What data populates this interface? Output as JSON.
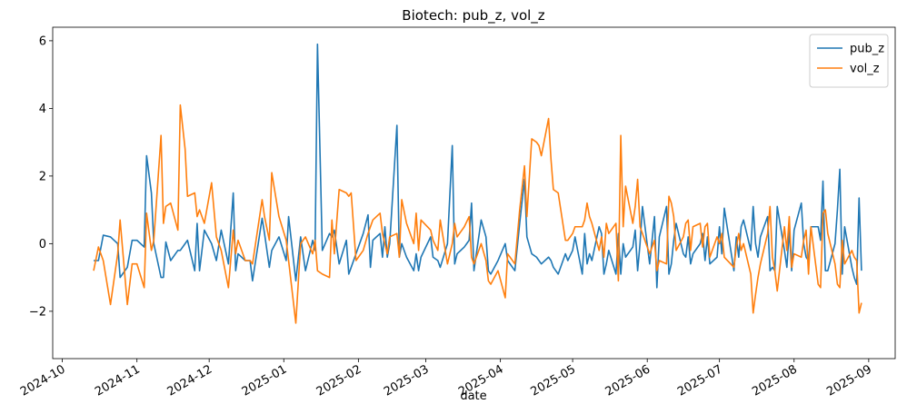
{
  "chart_data": {
    "type": "line",
    "title": "Biotech: pub_z, vol_z",
    "x_label": "date",
    "x": [
      "2024-10-14",
      "2024-10-16",
      "2024-10-18",
      "2024-10-21",
      "2024-10-24",
      "2024-10-25",
      "2024-10-28",
      "2024-10-30",
      "2024-11-01",
      "2024-11-04",
      "2024-11-05",
      "2024-11-07",
      "2024-11-08",
      "2024-11-11",
      "2024-11-12",
      "2024-11-13",
      "2024-11-15",
      "2024-11-18",
      "2024-11-19",
      "2024-11-21",
      "2024-11-22",
      "2024-11-25",
      "2024-11-26",
      "2024-11-27",
      "2024-11-29",
      "2024-12-02",
      "2024-12-04",
      "2024-12-06",
      "2024-12-09",
      "2024-12-11",
      "2024-12-12",
      "2024-12-13",
      "2024-12-16",
      "2024-12-18",
      "2024-12-19",
      "2024-12-23",
      "2024-12-24",
      "2024-12-26",
      "2024-12-27",
      "2024-12-30",
      "2025-01-02",
      "2025-01-03",
      "2025-01-06",
      "2025-01-08",
      "2025-01-10",
      "2025-01-13",
      "2025-01-14",
      "2025-01-15",
      "2025-01-17",
      "2025-01-20",
      "2025-01-21",
      "2025-01-22",
      "2025-01-24",
      "2025-01-27",
      "2025-01-28",
      "2025-01-29",
      "2025-01-31",
      "2025-02-03",
      "2025-02-05",
      "2025-02-06",
      "2025-02-07",
      "2025-02-10",
      "2025-02-11",
      "2025-02-12",
      "2025-02-13",
      "2025-02-14",
      "2025-02-17",
      "2025-02-18",
      "2025-02-19",
      "2025-02-21",
      "2025-02-24",
      "2025-02-25",
      "2025-02-26",
      "2025-02-27",
      "2025-03-03",
      "2025-03-04",
      "2025-03-06",
      "2025-03-07",
      "2025-03-10",
      "2025-03-12",
      "2025-03-13",
      "2025-03-14",
      "2025-03-17",
      "2025-03-19",
      "2025-03-20",
      "2025-03-21",
      "2025-03-24",
      "2025-03-26",
      "2025-03-27",
      "2025-03-28",
      "2025-03-31",
      "2025-04-03",
      "2025-04-04",
      "2025-04-07",
      "2025-04-09",
      "2025-04-11",
      "2025-04-12",
      "2025-04-14",
      "2025-04-16",
      "2025-04-17",
      "2025-04-18",
      "2025-04-21",
      "2025-04-22",
      "2025-04-23",
      "2025-04-25",
      "2025-04-28",
      "2025-04-29",
      "2025-05-01",
      "2025-05-02",
      "2025-05-05",
      "2025-05-06",
      "2025-05-07",
      "2025-05-08",
      "2025-05-09",
      "2025-05-12",
      "2025-05-13",
      "2025-05-14",
      "2025-05-15",
      "2025-05-16",
      "2025-05-19",
      "2025-05-20",
      "2025-05-21",
      "2025-05-22",
      "2025-05-23",
      "2025-05-26",
      "2025-05-27",
      "2025-05-28",
      "2025-05-29",
      "2025-05-30",
      "2025-06-02",
      "2025-06-04",
      "2025-06-05",
      "2025-06-06",
      "2025-06-09",
      "2025-06-10",
      "2025-06-11",
      "2025-06-12",
      "2025-06-13",
      "2025-06-16",
      "2025-06-17",
      "2025-06-18",
      "2025-06-19",
      "2025-06-20",
      "2025-06-23",
      "2025-06-24",
      "2025-06-25",
      "2025-06-26",
      "2025-06-27",
      "2025-06-30",
      "2025-07-01",
      "2025-07-02",
      "2025-07-03",
      "2025-07-07",
      "2025-07-08",
      "2025-07-09",
      "2025-07-10",
      "2025-07-11",
      "2025-07-14",
      "2025-07-15",
      "2025-07-16",
      "2025-07-17",
      "2025-07-18",
      "2025-07-21",
      "2025-07-22",
      "2025-07-23",
      "2025-07-24",
      "2025-07-25",
      "2025-07-28",
      "2025-07-29",
      "2025-07-30",
      "2025-07-31",
      "2025-08-01",
      "2025-08-04",
      "2025-08-05",
      "2025-08-06",
      "2025-08-07",
      "2025-08-08",
      "2025-08-11",
      "2025-08-12",
      "2025-08-13",
      "2025-08-14",
      "2025-08-15",
      "2025-08-18",
      "2025-08-19",
      "2025-08-20",
      "2025-08-21",
      "2025-08-22",
      "2025-08-25",
      "2025-08-26",
      "2025-08-27",
      "2025-08-28",
      "2025-08-29"
    ],
    "series": [
      {
        "name": "pub_z",
        "color": "#1f77b4",
        "values": [
          -0.5,
          -0.5,
          0.25,
          0.2,
          0.0,
          -1.0,
          -0.7,
          0.1,
          0.1,
          -0.1,
          2.6,
          1.5,
          0.0,
          -1.0,
          -1.0,
          0.05,
          -0.5,
          -0.2,
          -0.2,
          0.0,
          0.1,
          -0.8,
          0.6,
          -0.8,
          0.4,
          0.0,
          -0.5,
          0.4,
          -0.6,
          1.5,
          -0.8,
          -0.3,
          -0.5,
          -0.5,
          -1.1,
          0.75,
          0.3,
          -0.7,
          -0.2,
          0.2,
          -0.5,
          0.8,
          -1.1,
          0.2,
          -0.8,
          0.1,
          -0.2,
          5.9,
          -0.2,
          0.3,
          0.2,
          0.4,
          -0.6,
          0.1,
          -0.9,
          -0.7,
          -0.3,
          0.3,
          0.85,
          -0.7,
          0.1,
          0.3,
          -0.4,
          0.5,
          -0.4,
          0.0,
          3.5,
          -0.4,
          0.0,
          -0.4,
          -0.8,
          -0.3,
          -0.8,
          -0.4,
          0.2,
          -0.4,
          -0.5,
          -0.7,
          0.0,
          2.9,
          -0.6,
          -0.3,
          -0.1,
          0.1,
          1.2,
          -0.8,
          0.7,
          0.2,
          -0.8,
          -0.9,
          -0.5,
          0.0,
          -0.5,
          -0.8,
          0.6,
          1.9,
          0.2,
          -0.3,
          -0.4,
          -0.5,
          -0.6,
          -0.4,
          -0.5,
          -0.7,
          -0.9,
          -0.3,
          -0.5,
          -0.2,
          0.2,
          -0.9,
          0.3,
          -0.6,
          -0.3,
          -0.5,
          0.5,
          0.3,
          -0.9,
          -0.6,
          -0.2,
          -0.9,
          0.3,
          -0.9,
          0.0,
          -0.4,
          -0.1,
          0.4,
          -0.8,
          0.0,
          1.1,
          -0.6,
          0.8,
          -1.3,
          0.2,
          1.1,
          -0.9,
          -0.6,
          0.1,
          0.6,
          -0.3,
          -0.4,
          0.2,
          -0.6,
          -0.3,
          0.0,
          0.3,
          -0.5,
          0.2,
          -0.6,
          -0.4,
          0.5,
          -0.3,
          1.05,
          -0.8,
          0.2,
          -0.4,
          0.5,
          0.7,
          -0.2,
          1.1,
          0.0,
          -0.4,
          0.2,
          0.8,
          -0.8,
          -0.7,
          -0.8,
          1.1,
          -0.2,
          -0.7,
          0.4,
          -0.8,
          0.4,
          1.2,
          0.0,
          -0.4,
          -0.5,
          0.5,
          0.5,
          0.1,
          1.85,
          -0.8,
          -0.8,
          0.0,
          1.0,
          2.2,
          -0.9,
          0.5,
          -0.7,
          -1.0,
          -1.2,
          1.35,
          -0.8
        ]
      },
      {
        "name": "vol_z",
        "color": "#ff7f0e",
        "values": [
          -0.8,
          -0.1,
          -0.5,
          -1.8,
          -0.3,
          0.7,
          -1.8,
          -0.6,
          -0.6,
          -1.3,
          0.9,
          -0.2,
          0.1,
          3.2,
          0.6,
          1.1,
          1.2,
          0.4,
          4.1,
          2.8,
          1.4,
          1.5,
          0.8,
          1.0,
          0.6,
          1.8,
          0.2,
          -0.2,
          -1.3,
          0.4,
          -0.3,
          0.1,
          -0.5,
          -0.5,
          -0.6,
          1.3,
          0.8,
          0.1,
          2.1,
          0.8,
          0.1,
          -0.5,
          -2.35,
          0.0,
          0.2,
          -0.3,
          0.1,
          -0.8,
          -0.9,
          -1.0,
          0.7,
          -0.3,
          1.6,
          1.5,
          1.4,
          1.5,
          -0.5,
          -0.2,
          0.3,
          0.5,
          0.7,
          0.9,
          0.3,
          0.0,
          -0.3,
          0.2,
          0.3,
          -0.4,
          1.3,
          0.6,
          0.0,
          0.9,
          -0.2,
          0.7,
          0.4,
          0.1,
          -0.2,
          0.7,
          -0.6,
          0.0,
          0.6,
          0.2,
          0.5,
          0.8,
          -0.4,
          -0.6,
          0.0,
          -0.5,
          -1.1,
          -1.2,
          -0.8,
          -1.6,
          -0.3,
          -0.6,
          1.0,
          2.3,
          0.8,
          3.1,
          3.0,
          2.9,
          2.6,
          3.7,
          2.5,
          1.6,
          1.5,
          0.1,
          0.1,
          0.3,
          0.5,
          0.5,
          0.7,
          1.2,
          0.8,
          0.6,
          -0.2,
          0.2,
          -0.4,
          0.6,
          0.3,
          0.6,
          -1.1,
          3.2,
          0.5,
          1.7,
          0.6,
          1.1,
          1.9,
          0.5,
          0.3,
          -0.3,
          0.1,
          -0.8,
          -0.5,
          -0.6,
          1.4,
          1.2,
          0.8,
          -0.2,
          0.2,
          0.6,
          0.7,
          -0.2,
          0.5,
          0.6,
          -0.1,
          0.5,
          0.6,
          -0.4,
          0.2,
          0.0,
          0.3,
          -0.4,
          -0.7,
          -0.1,
          0.3,
          -0.2,
          0.0,
          -0.9,
          -2.05,
          -1.5,
          -1.0,
          -0.6,
          0.3,
          1.1,
          -0.4,
          -0.8,
          -1.4,
          0.5,
          -0.2,
          0.8,
          -0.7,
          -0.3,
          -0.4,
          0.1,
          0.4,
          -0.9,
          0.5,
          -1.2,
          -1.3,
          0.9,
          1.0,
          0.3,
          -0.6,
          -1.2,
          -1.3,
          0.1,
          -0.6,
          -0.2,
          -0.4,
          -0.5,
          -2.05,
          -1.75
        ]
      }
    ],
    "xlim": [
      "2024-09-27",
      "2025-09-12"
    ],
    "xticks": [
      "2024-10",
      "2024-11",
      "2024-12",
      "2025-01",
      "2025-02",
      "2025-03",
      "2025-04",
      "2025-05",
      "2025-06",
      "2025-07",
      "2025-08",
      "2025-09"
    ],
    "ylim": [
      -3.4,
      6.4
    ],
    "yticks": [
      {
        "value": -2,
        "label": "−2"
      },
      0,
      2,
      4,
      6
    ],
    "grid": false,
    "legend": "upper right"
  }
}
